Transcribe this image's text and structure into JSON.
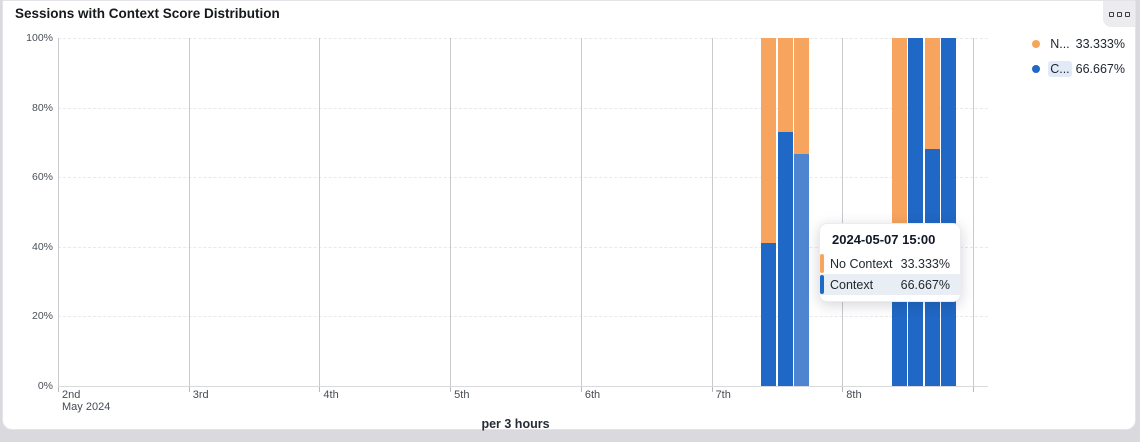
{
  "card": {
    "title": "Sessions with Context Score Distribution"
  },
  "panel_button": {
    "icon": "three-squares-icon"
  },
  "legend": {
    "items": [
      {
        "abbr": "N...",
        "value": "33.333%",
        "color": "#f7a45e",
        "highlighted": false
      },
      {
        "abbr": "C...",
        "value": "66.667%",
        "color": "#2068c5",
        "highlighted": true
      }
    ]
  },
  "tooltip": {
    "title": "2024-05-07 15:00",
    "rows": [
      {
        "label": "No Context",
        "value": "33.333%",
        "color": "#f7a45e",
        "highlighted": false
      },
      {
        "label": "Context",
        "value": "66.667%",
        "color": "#2068c5",
        "highlighted": true
      }
    ]
  },
  "chart_data": {
    "type": "bar",
    "stacked": true,
    "unit": "percent",
    "title": "Sessions with Context Score Distribution",
    "xlabel": "per 3 hours",
    "ylabel": "",
    "ylim": [
      0,
      100
    ],
    "y_ticks": [
      "0%",
      "20%",
      "40%",
      "60%",
      "80%",
      "100%"
    ],
    "x_ticks": [
      {
        "label": "2nd",
        "sublabel": "May 2024"
      },
      {
        "label": "3rd"
      },
      {
        "label": "4th"
      },
      {
        "label": "5th"
      },
      {
        "label": "6th"
      },
      {
        "label": "7th"
      },
      {
        "label": "8th"
      }
    ],
    "x_range": [
      "2024-05-02 00:00",
      "2024-05-09 00:00"
    ],
    "categories": [
      "2024-05-07 09:00",
      "2024-05-07 12:00",
      "2024-05-07 15:00",
      "2024-05-08 09:00",
      "2024-05-08 12:00",
      "2024-05-08 15:00",
      "2024-05-08 18:00"
    ],
    "series": [
      {
        "name": "No Context",
        "color": "#f7a45e",
        "values": [
          59,
          27,
          33.333,
          76,
          0,
          32,
          0
        ]
      },
      {
        "name": "Context",
        "color": "#2068c5",
        "values": [
          41,
          73,
          66.667,
          24,
          100,
          68,
          100
        ]
      }
    ],
    "hovered_category": "2024-05-07 15:00",
    "hover_color": "#4e85d1",
    "legend_position": "top-right",
    "grid": "dashed-horizontal"
  }
}
